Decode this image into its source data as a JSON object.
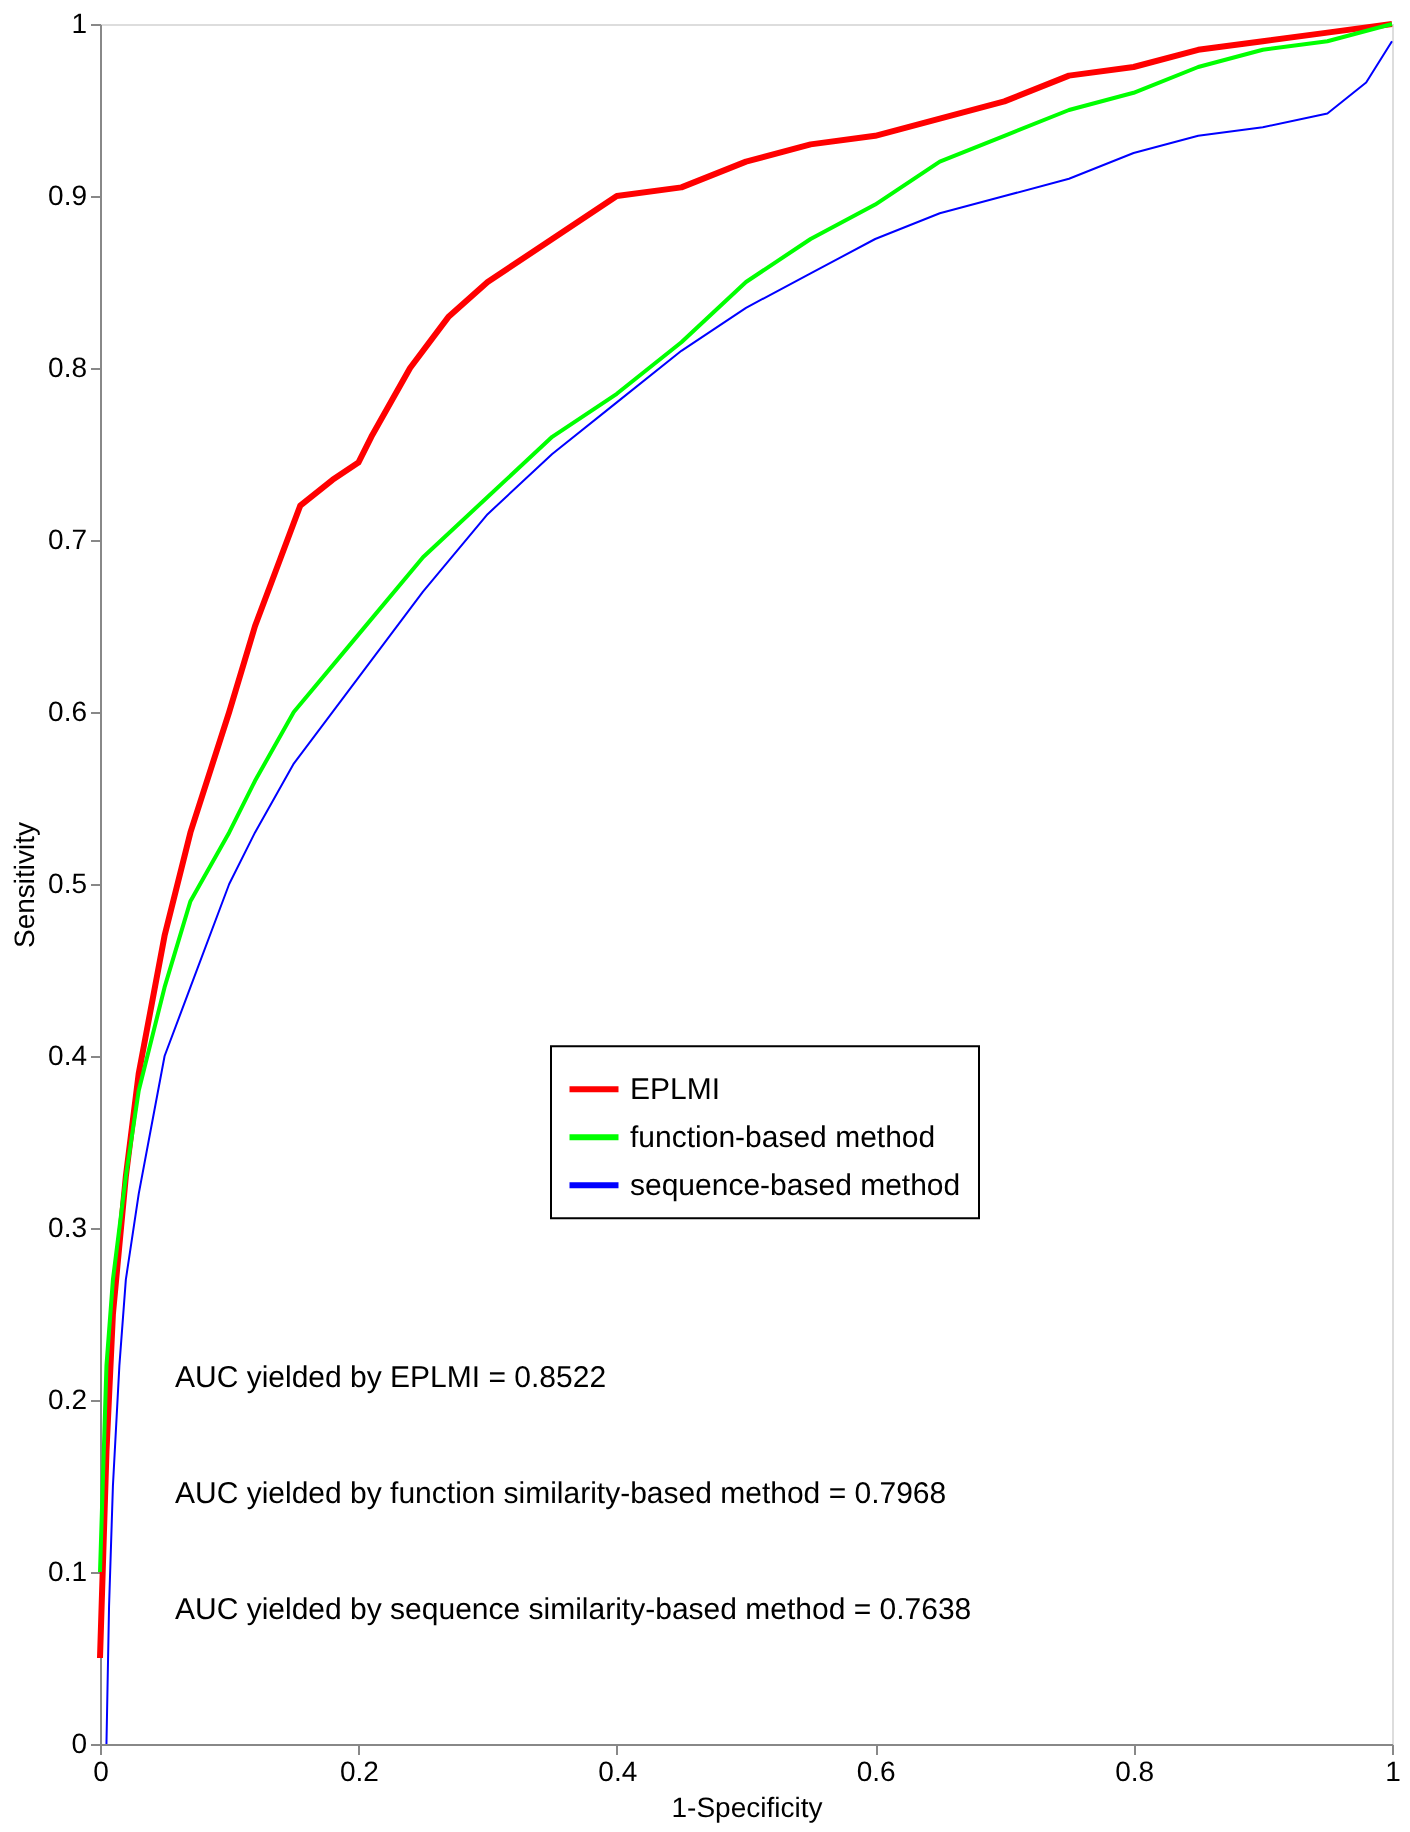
{
  "chart_data": {
    "type": "line",
    "xlabel": "1-Specificity",
    "ylabel": "Sensitivity",
    "xlim": [
      0,
      1
    ],
    "ylim": [
      0,
      1
    ],
    "xticks": [
      0,
      0.2,
      0.4,
      0.6,
      0.8,
      1
    ],
    "yticks": [
      0,
      0.1,
      0.2,
      0.3,
      0.4,
      0.5,
      0.6,
      0.7,
      0.8,
      0.9,
      1
    ],
    "grid": false,
    "legend": "right",
    "marker": "none",
    "line_style": "solid",
    "series": [
      {
        "name": "EPLMI",
        "color": "#ff0000",
        "x": [
          0,
          0.005,
          0.01,
          0.02,
          0.03,
          0.05,
          0.07,
          0.1,
          0.12,
          0.14,
          0.155,
          0.18,
          0.2,
          0.21,
          0.24,
          0.27,
          0.3,
          0.35,
          0.4,
          0.45,
          0.5,
          0.55,
          0.6,
          0.65,
          0.7,
          0.75,
          0.8,
          0.85,
          0.9,
          0.95,
          1
        ],
        "values": [
          0.05,
          0.17,
          0.25,
          0.33,
          0.39,
          0.47,
          0.53,
          0.6,
          0.65,
          0.69,
          0.72,
          0.735,
          0.745,
          0.76,
          0.8,
          0.83,
          0.85,
          0.875,
          0.9,
          0.905,
          0.92,
          0.93,
          0.935,
          0.945,
          0.955,
          0.97,
          0.975,
          0.985,
          0.99,
          0.995,
          1
        ]
      },
      {
        "name": "function-based method",
        "color": "#00ff00",
        "x": [
          0,
          0.005,
          0.01,
          0.02,
          0.03,
          0.05,
          0.07,
          0.1,
          0.12,
          0.15,
          0.2,
          0.25,
          0.3,
          0.35,
          0.4,
          0.45,
          0.5,
          0.55,
          0.6,
          0.65,
          0.7,
          0.75,
          0.8,
          0.85,
          0.9,
          0.95,
          1
        ],
        "values": [
          0.1,
          0.22,
          0.27,
          0.33,
          0.38,
          0.44,
          0.49,
          0.53,
          0.56,
          0.6,
          0.645,
          0.69,
          0.725,
          0.76,
          0.785,
          0.815,
          0.85,
          0.875,
          0.895,
          0.92,
          0.935,
          0.95,
          0.96,
          0.975,
          0.985,
          0.99,
          1
        ]
      },
      {
        "name": "sequence-based method",
        "color": "#0000ff",
        "x": [
          0.005,
          0.007,
          0.01,
          0.015,
          0.02,
          0.03,
          0.04,
          0.05,
          0.07,
          0.1,
          0.12,
          0.15,
          0.2,
          0.25,
          0.3,
          0.35,
          0.4,
          0.45,
          0.5,
          0.55,
          0.6,
          0.65,
          0.7,
          0.75,
          0.8,
          0.85,
          0.9,
          0.95,
          0.98,
          1
        ],
        "values": [
          0,
          0.08,
          0.15,
          0.22,
          0.27,
          0.32,
          0.36,
          0.4,
          0.44,
          0.5,
          0.53,
          0.57,
          0.62,
          0.67,
          0.715,
          0.75,
          0.78,
          0.81,
          0.835,
          0.855,
          0.875,
          0.89,
          0.9,
          0.91,
          0.925,
          0.935,
          0.94,
          0.948,
          0.966,
          0.99
        ]
      }
    ],
    "annotations": [
      "AUC yielded by EPLMI = 0.8522",
      "AUC yielded by function similarity-based method = 0.7968",
      "AUC yielded by sequence similarity-based method = 0.7638"
    ]
  }
}
